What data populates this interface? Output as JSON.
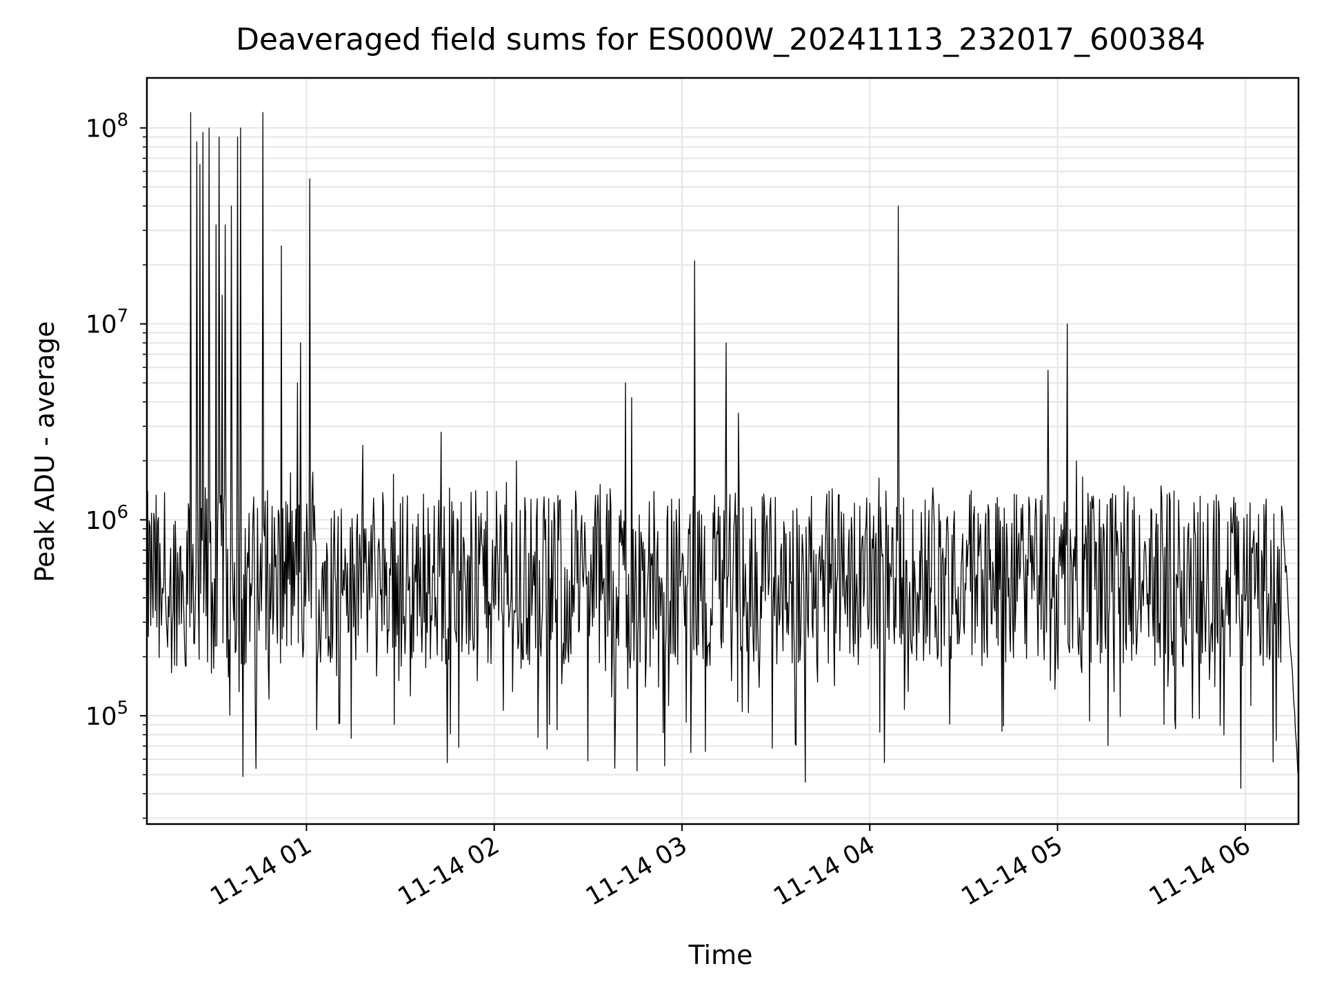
{
  "chart_data": {
    "type": "line",
    "title": "Deaveraged field sums for ES000W_20241113_232017_600384",
    "xlabel": "Time",
    "ylabel": "Peak ADU - average",
    "yscale": "log",
    "ylim": [
      28000,
      180000000
    ],
    "xlim": [
      "2024-11-14 00:09",
      "2024-11-14 06:17"
    ],
    "grid": true,
    "line_color": "#000000",
    "grid_color": "#e6e6e6",
    "x_ticks": [
      {
        "label": "11-14 01",
        "value": "2024-11-14 01:00"
      },
      {
        "label": "11-14 02",
        "value": "2024-11-14 02:00"
      },
      {
        "label": "11-14 03",
        "value": "2024-11-14 03:00"
      },
      {
        "label": "11-14 04",
        "value": "2024-11-14 04:00"
      },
      {
        "label": "11-14 05",
        "value": "2024-11-14 05:00"
      },
      {
        "label": "11-14 06",
        "value": "2024-11-14 06:00"
      }
    ],
    "y_ticks": [
      {
        "value": 100000,
        "base": "10",
        "exp": "5"
      },
      {
        "value": 1000000,
        "base": "10",
        "exp": "6"
      },
      {
        "value": 10000000,
        "base": "10",
        "exp": "7"
      },
      {
        "value": 100000000,
        "base": "10",
        "exp": "8"
      }
    ],
    "series": [
      {
        "values_note": "baseline noise between ~5e4 and ~1.5e6 with spikes",
        "spikes": [
          {
            "x": "2024-11-14 00:23",
            "y": 120000000
          },
          {
            "x": "2024-11-14 00:25",
            "y": 85000000
          },
          {
            "x": "2024-11-14 00:26",
            "y": 65000000
          },
          {
            "x": "2024-11-14 00:27",
            "y": 95000000
          },
          {
            "x": "2024-11-14 00:29",
            "y": 100000000
          },
          {
            "x": "2024-11-14 00:31",
            "y": 32000000
          },
          {
            "x": "2024-11-14 00:32",
            "y": 90000000
          },
          {
            "x": "2024-11-14 00:33",
            "y": 14000000
          },
          {
            "x": "2024-11-14 00:34",
            "y": 32000000
          },
          {
            "x": "2024-11-14 00:36",
            "y": 40000000
          },
          {
            "x": "2024-11-14 00:38",
            "y": 90000000
          },
          {
            "x": "2024-11-14 00:39",
            "y": 100000000
          },
          {
            "x": "2024-11-14 00:46",
            "y": 120000000
          },
          {
            "x": "2024-11-14 00:52",
            "y": 25000000
          },
          {
            "x": "2024-11-14 00:57",
            "y": 5000000
          },
          {
            "x": "2024-11-14 00:58",
            "y": 8000000
          },
          {
            "x": "2024-11-14 01:01",
            "y": 55000000
          },
          {
            "x": "2024-11-14 01:18",
            "y": 2400000
          },
          {
            "x": "2024-11-14 01:43",
            "y": 2800000
          },
          {
            "x": "2024-11-14 02:07",
            "y": 2000000
          },
          {
            "x": "2024-11-14 02:42",
            "y": 5000000
          },
          {
            "x": "2024-11-14 02:44",
            "y": 4200000
          },
          {
            "x": "2024-11-14 03:04",
            "y": 21000000
          },
          {
            "x": "2024-11-14 03:14",
            "y": 8000000
          },
          {
            "x": "2024-11-14 03:18",
            "y": 3500000
          },
          {
            "x": "2024-11-14 04:09",
            "y": 40000000
          },
          {
            "x": "2024-11-14 04:57",
            "y": 5800000
          },
          {
            "x": "2024-11-14 05:03",
            "y": 10000000
          },
          {
            "x": "2024-11-14 05:06",
            "y": 2000000
          }
        ]
      }
    ]
  }
}
